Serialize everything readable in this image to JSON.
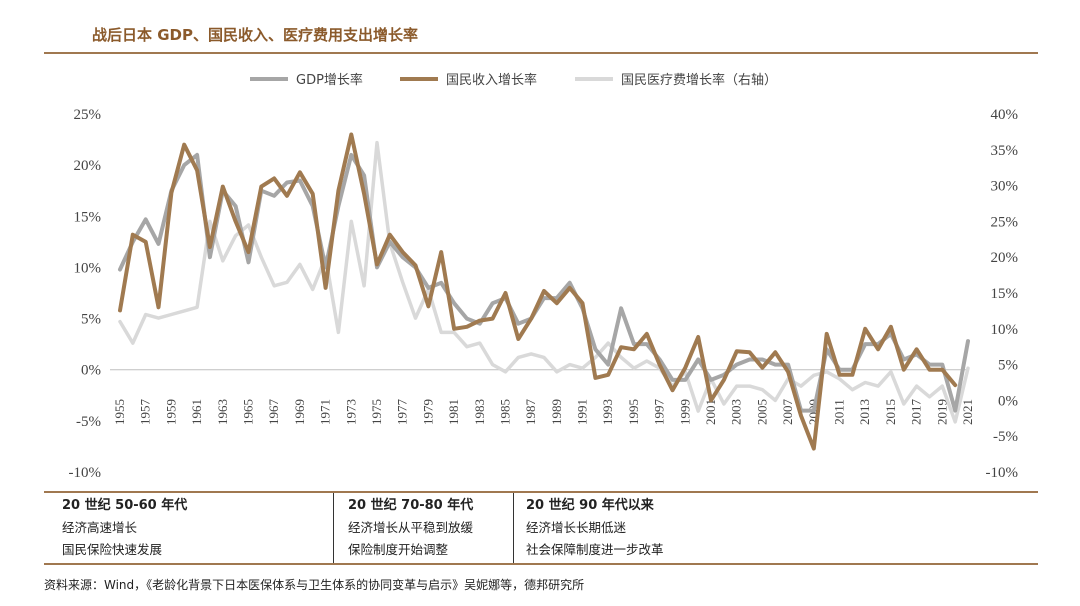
{
  "title": "战后日本 GDP、国民收入、医疗费用支出增长率",
  "chart_data": {
    "type": "line",
    "legend": [
      "GDP增长率",
      "国民收入增长率",
      "国民医疗费增长率（右轴）"
    ],
    "colors": [
      "#A6A6A6",
      "#A07A50",
      "#D9D9D9"
    ],
    "x": [
      1955,
      1956,
      1957,
      1958,
      1959,
      1960,
      1961,
      1962,
      1963,
      1964,
      1965,
      1966,
      1967,
      1968,
      1969,
      1970,
      1971,
      1972,
      1973,
      1974,
      1975,
      1976,
      1977,
      1978,
      1979,
      1980,
      1981,
      1982,
      1983,
      1984,
      1985,
      1986,
      1987,
      1988,
      1989,
      1990,
      1991,
      1992,
      1993,
      1994,
      1995,
      1996,
      1997,
      1998,
      1999,
      2000,
      2001,
      2002,
      2003,
      2004,
      2005,
      2006,
      2007,
      2008,
      2009,
      2010,
      2011,
      2012,
      2013,
      2014,
      2015,
      2016,
      2017,
      2018,
      2019,
      2020,
      2021
    ],
    "x_tick_labels": [
      "1955",
      "1957",
      "1959",
      "1961",
      "1963",
      "1965",
      "1967",
      "1969",
      "1971",
      "1973",
      "1975",
      "1977",
      "1979",
      "1981",
      "1983",
      "1985",
      "1987",
      "1989",
      "1991",
      "1993",
      "1995",
      "1997",
      "1999",
      "2001",
      "2003",
      "2005",
      "2007",
      "2009",
      "2011",
      "2013",
      "2015",
      "2017",
      "2019",
      "2021"
    ],
    "series": [
      {
        "name": "GDP增长率",
        "axis": "left",
        "values": [
          9.8,
          12.5,
          14.7,
          12.3,
          17.5,
          20.0,
          21.0,
          11.0,
          17.5,
          16.0,
          10.5,
          17.5,
          17.0,
          18.3,
          18.5,
          16.0,
          10.0,
          16.0,
          21.0,
          19.0,
          10.0,
          12.5,
          11.0,
          10.0,
          8.0,
          8.5,
          6.5,
          5.0,
          4.5,
          6.5,
          7.0,
          4.5,
          5.0,
          7.0,
          7.0,
          8.5,
          6.0,
          2.0,
          0.5,
          6.0,
          2.5,
          2.5,
          1.0,
          -1.0,
          -1.0,
          1.0,
          -1.0,
          -0.5,
          0.5,
          1.0,
          1.0,
          0.5,
          0.5,
          -4.0,
          -4.0,
          2.0,
          0.0,
          0.0,
          2.5,
          2.5,
          3.5,
          1.0,
          1.5,
          0.5,
          0.5,
          -4.0,
          2.8
        ]
      },
      {
        "name": "国民收入增长率",
        "axis": "left",
        "values": [
          5.8,
          13.2,
          12.5,
          6.1,
          17.3,
          22.0,
          19.5,
          12.0,
          17.9,
          14.5,
          11.5,
          17.9,
          18.7,
          17.0,
          19.3,
          17.2,
          8.0,
          17.5,
          23.0,
          17.2,
          10.3,
          13.2,
          11.5,
          10.2,
          6.2,
          11.5,
          4.0,
          4.2,
          4.8,
          5.0,
          7.5,
          3.0,
          5.0,
          7.7,
          6.5,
          8.0,
          6.5,
          -0.8,
          -0.5,
          2.2,
          2.0,
          3.5,
          0.5,
          -2.0,
          0.2,
          3.2,
          -3.0,
          -1.0,
          1.8,
          1.7,
          0.2,
          1.7,
          -0.2,
          -4.5,
          -7.7,
          3.5,
          -0.5,
          -0.5,
          4.0,
          2.0,
          4.2,
          0.0,
          2.0,
          0.0,
          0.0,
          -1.5,
          null
        ]
      },
      {
        "name": "国民医疗费增长率（右轴）",
        "axis": "right",
        "values": [
          11.0,
          8.0,
          12.0,
          11.5,
          12.0,
          12.5,
          13.0,
          25.0,
          19.5,
          23.0,
          24.5,
          20.0,
          16.0,
          16.5,
          19.0,
          15.5,
          20.0,
          9.5,
          25.0,
          16.0,
          36.0,
          22.0,
          16.5,
          11.5,
          15.5,
          9.5,
          9.5,
          7.5,
          8.0,
          5.0,
          4.0,
          6.0,
          6.5,
          6.0,
          4.0,
          5.0,
          4.5,
          6.0,
          8.0,
          6.0,
          4.5,
          5.5,
          4.5,
          2.0,
          4.0,
          -1.5,
          3.0,
          -0.5,
          2.0,
          2.0,
          1.5,
          0.0,
          3.0,
          2.0,
          3.5,
          4.0,
          3.0,
          1.5,
          2.5,
          2.0,
          4.0,
          -0.5,
          2.0,
          0.5,
          2.0,
          -3.0,
          4.5
        ]
      }
    ],
    "left_axis": {
      "ylim": [
        -10,
        25
      ],
      "ticks": [
        "25%",
        "20%",
        "15%",
        "10%",
        "5%",
        "0%",
        "-5%",
        "-10%"
      ]
    },
    "right_axis": {
      "ylim": [
        -10,
        40
      ],
      "ticks": [
        "40%",
        "35%",
        "30%",
        "25%",
        "20%",
        "15%",
        "10%",
        "5%",
        "0%",
        "-5%",
        "-10%"
      ]
    },
    "legend_position": "top-center"
  },
  "table": {
    "columns": [
      {
        "header": "20 世纪 50-60 年代",
        "rows": [
          "经济高速增长",
          "国民保险快速发展"
        ]
      },
      {
        "header": "20 世纪 70-80 年代",
        "rows": [
          "经济增长从平稳到放缓",
          "保险制度开始调整"
        ]
      },
      {
        "header": "20 世纪 90 年代以来",
        "rows": [
          "经济增长长期低迷",
          "社会保障制度进一步改革"
        ]
      }
    ]
  },
  "source": "资料来源：Wind，《老龄化背景下日本医保体系与卫生体系的协同变革与启示》吴妮娜等，德邦研究所"
}
